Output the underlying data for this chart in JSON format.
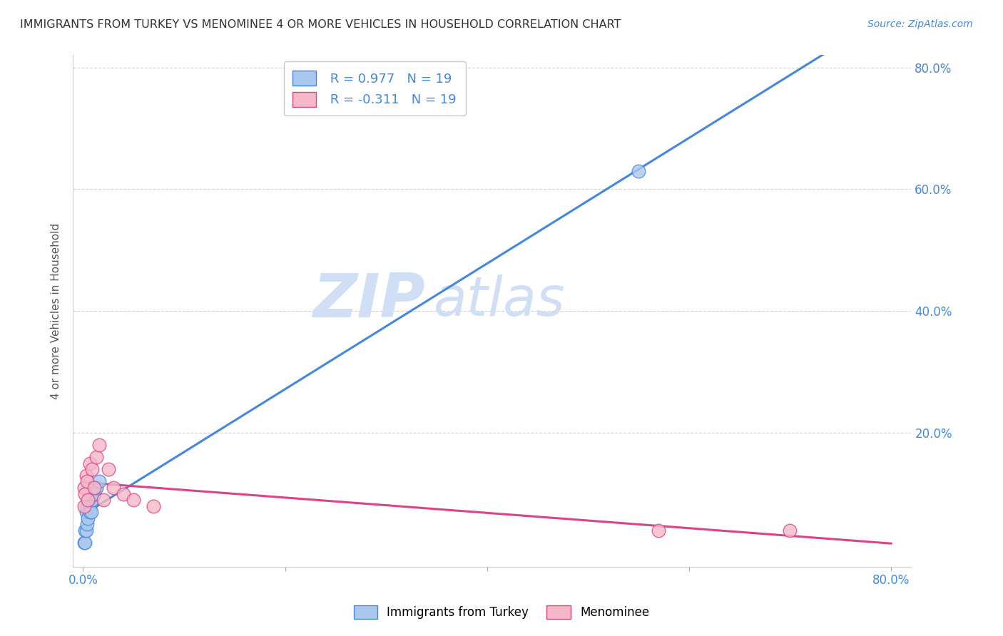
{
  "title": "IMMIGRANTS FROM TURKEY VS MENOMINEE 4 OR MORE VEHICLES IN HOUSEHOLD CORRELATION CHART",
  "source": "Source: ZipAtlas.com",
  "ylabel": "4 or more Vehicles in Household",
  "xlabel": "",
  "xlim": [
    -0.01,
    0.82
  ],
  "ylim": [
    -0.02,
    0.82
  ],
  "xtick_labels": [
    "0.0%",
    "",
    "",
    "",
    "80.0%"
  ],
  "xtick_vals": [
    0.0,
    0.2,
    0.4,
    0.6,
    0.8
  ],
  "ytick_right_labels": [
    "80.0%",
    "60.0%",
    "40.0%",
    "20.0%"
  ],
  "ytick_vals": [
    0.8,
    0.6,
    0.4,
    0.2
  ],
  "blue_label": "Immigrants from Turkey",
  "pink_label": "Menominee",
  "blue_R": "R = 0.977",
  "blue_N": "N = 19",
  "pink_R": "R = -0.311",
  "pink_N": "N = 19",
  "blue_color": "#aac8ee",
  "pink_color": "#f4b8c8",
  "blue_line_color": "#4488dd",
  "pink_line_color": "#dd4488",
  "watermark_zip": "ZIP",
  "watermark_atlas": "atlas",
  "watermark_color": "#d0dff5",
  "blue_scatter_x": [
    0.001,
    0.002,
    0.002,
    0.003,
    0.003,
    0.004,
    0.004,
    0.005,
    0.005,
    0.006,
    0.007,
    0.007,
    0.008,
    0.009,
    0.01,
    0.011,
    0.013,
    0.016,
    0.55
  ],
  "blue_scatter_y": [
    0.02,
    0.02,
    0.04,
    0.04,
    0.07,
    0.05,
    0.08,
    0.06,
    0.09,
    0.09,
    0.08,
    0.07,
    0.07,
    0.09,
    0.1,
    0.1,
    0.11,
    0.12,
    0.63
  ],
  "pink_scatter_x": [
    0.001,
    0.001,
    0.002,
    0.003,
    0.004,
    0.005,
    0.007,
    0.009,
    0.011,
    0.013,
    0.016,
    0.02,
    0.025,
    0.03,
    0.04,
    0.05,
    0.07,
    0.57,
    0.7
  ],
  "pink_scatter_y": [
    0.08,
    0.11,
    0.1,
    0.13,
    0.12,
    0.09,
    0.15,
    0.14,
    0.11,
    0.16,
    0.18,
    0.09,
    0.14,
    0.11,
    0.1,
    0.09,
    0.08,
    0.04,
    0.04
  ],
  "background_color": "#ffffff",
  "grid_color": "#cccccc",
  "title_color": "#333333",
  "source_color": "#4488dd",
  "tick_color": "#4488dd"
}
